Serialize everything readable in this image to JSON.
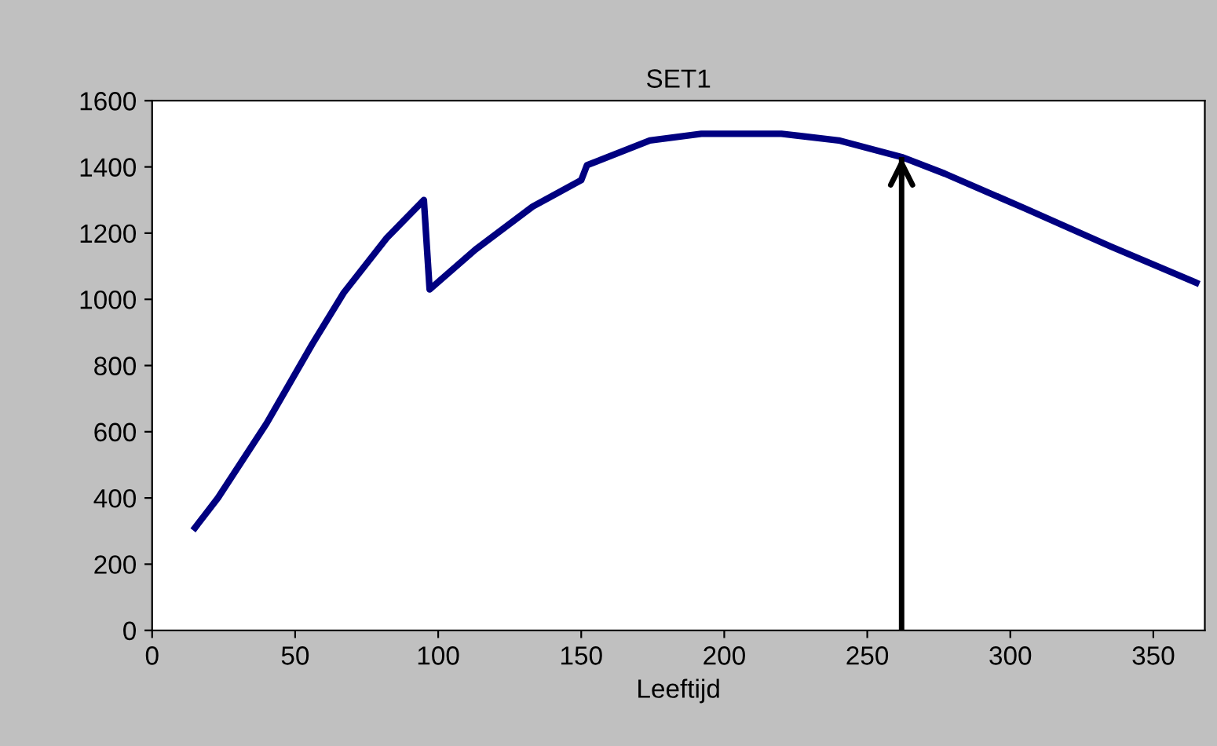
{
  "chart_data": {
    "type": "line",
    "title": "SET1",
    "xlabel": "Leeftijd",
    "x": [
      15,
      23,
      40,
      56,
      67,
      82,
      95,
      97,
      113,
      133,
      150,
      152,
      174,
      192,
      220,
      240,
      262,
      277,
      305,
      335,
      365
    ],
    "series": [
      {
        "color": "#000080",
        "values": [
          310,
          400,
          625,
          865,
          1020,
          1185,
          1300,
          1030,
          1150,
          1280,
          1360,
          1405,
          1480,
          1500,
          1500,
          1480,
          1430,
          1380,
          1275,
          1160,
          1050
        ]
      }
    ],
    "xlim": [
      0,
      368
    ],
    "ylim": [
      0,
      1600
    ],
    "xticks": [
      0,
      50,
      100,
      150,
      200,
      250,
      300,
      350
    ],
    "yticks": [
      0,
      200,
      400,
      600,
      800,
      1000,
      1200,
      1400,
      1600
    ],
    "grid": false,
    "marker": "none",
    "line_style": "solid",
    "ref_lines": [
      {
        "axis": "x",
        "value": 262,
        "color": "#000000"
      }
    ]
  }
}
